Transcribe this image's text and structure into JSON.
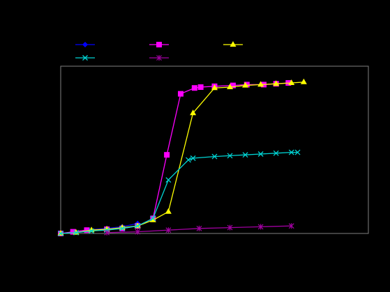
{
  "chart_data": {
    "type": "line",
    "title": "",
    "xlabel": "",
    "ylabel": "",
    "xlim": [
      0,
      100
    ],
    "ylim": [
      0,
      100
    ],
    "grid": false,
    "legend_position": "top-left",
    "background": "#000000",
    "plot_frame_color": "#808080",
    "series": [
      {
        "color": "#0000ff",
        "marker": "diamond",
        "x": [
          0,
          4.5,
          8.5,
          15,
          20,
          25
        ],
        "y": [
          0,
          1,
          2,
          3,
          4,
          6
        ]
      },
      {
        "color": "#ff00ff",
        "marker": "square",
        "x": [
          0,
          4,
          8.5,
          15,
          20,
          25,
          30,
          34.5,
          39,
          43.5,
          45.5,
          50,
          56,
          60.5,
          66,
          70,
          74
        ],
        "y": [
          0,
          1,
          2,
          2.5,
          3,
          4.5,
          9,
          47,
          83.5,
          87,
          87.5,
          88,
          88.5,
          89,
          89,
          89.5,
          90
        ]
      },
      {
        "color": "#ffff00",
        "marker": "triangle",
        "x": [
          0,
          5,
          10,
          15,
          20,
          25,
          30,
          35,
          43,
          50,
          55,
          60,
          65,
          70,
          75,
          79
        ],
        "y": [
          0,
          0.5,
          2,
          2.5,
          3.5,
          4.5,
          8,
          13,
          72,
          87,
          87.5,
          88.5,
          89,
          89.5,
          90,
          90.5
        ]
      },
      {
        "color": "#00d4d4",
        "marker": "x",
        "x": [
          0,
          5,
          10,
          15,
          20,
          25,
          30,
          35,
          41.5,
          43,
          50,
          55,
          60,
          65,
          70,
          75,
          77
        ],
        "y": [
          0,
          0.5,
          1.5,
          2,
          3,
          4.5,
          9,
          32,
          44,
          45,
          46,
          46.5,
          47,
          47.5,
          48,
          48.5,
          48.5
        ]
      },
      {
        "color": "#a000a0",
        "marker": "star",
        "x": [
          15,
          25,
          35,
          45,
          55,
          65,
          75
        ],
        "y": [
          0.5,
          1,
          2,
          3,
          3.5,
          4,
          4.5
        ]
      }
    ]
  }
}
